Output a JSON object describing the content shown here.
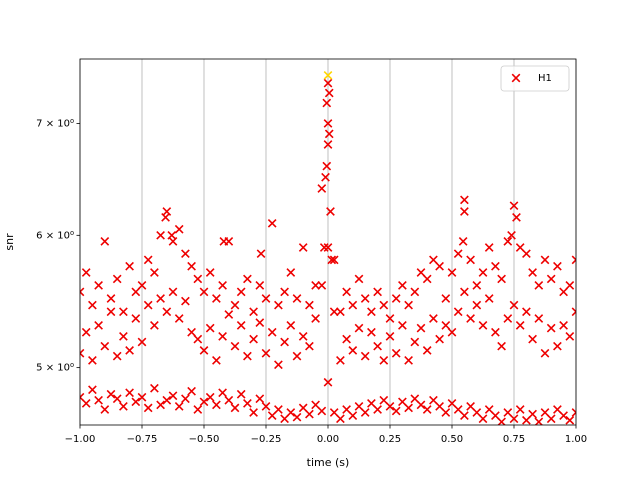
{
  "chart_data": {
    "type": "scatter",
    "xlabel": "time (s)",
    "ylabel": "snr",
    "xlim": [
      -1,
      1
    ],
    "xticks": [
      {
        "value": -1,
        "label": "−1.00"
      },
      {
        "value": -0.75,
        "label": "−0.75"
      },
      {
        "value": -0.5,
        "label": "−0.50"
      },
      {
        "value": -0.25,
        "label": "−0.25"
      },
      {
        "value": 0,
        "label": "0.00"
      },
      {
        "value": 0.25,
        "label": "0.25"
      },
      {
        "value": 0.5,
        "label": "0.50"
      },
      {
        "value": 0.75,
        "label": "0.75"
      },
      {
        "value": 1,
        "label": "1.00"
      }
    ],
    "ylim": [
      4.62,
      7.65
    ],
    "ylog": true,
    "yticks": [
      {
        "value": 5,
        "label": "5 × 10⁰"
      },
      {
        "value": 6,
        "label": "6 × 10⁰"
      },
      {
        "value": 7,
        "label": "7 × 10⁰"
      }
    ],
    "grid": "x",
    "legend": "upper right",
    "series": [
      {
        "name": "H1",
        "color": "#ee0000",
        "marker": "x",
        "x": [
          -1,
          -0.975,
          -0.95,
          -0.925,
          -0.9,
          -0.875,
          -0.85,
          -0.825,
          -0.8,
          -0.775,
          -0.75,
          -0.725,
          -0.7,
          -0.675,
          -0.65,
          -0.625,
          -0.6,
          -0.575,
          -0.55,
          -0.525,
          -0.5,
          -0.475,
          -0.45,
          -0.425,
          -0.4,
          -0.375,
          -0.35,
          -0.325,
          -0.3,
          -0.275,
          -0.25,
          -0.225,
          -0.2,
          -0.175,
          -0.15,
          -0.125,
          -0.1,
          -0.075,
          -0.05,
          -0.025,
          0,
          0.025,
          0.05,
          0.075,
          0.1,
          0.125,
          0.15,
          0.175,
          0.2,
          0.225,
          0.25,
          0.275,
          0.3,
          0.325,
          0.35,
          0.375,
          0.4,
          0.425,
          0.45,
          0.475,
          0.5,
          0.525,
          0.55,
          0.575,
          0.6,
          0.625,
          0.65,
          0.675,
          0.7,
          0.725,
          0.75,
          0.775,
          0.8,
          0.825,
          0.85,
          0.875,
          0.9,
          0.925,
          0.95,
          0.975,
          1,
          -1,
          -0.975,
          -0.95,
          -0.925,
          -0.9,
          -0.875,
          -0.85,
          -0.825,
          -0.8,
          -0.775,
          -0.75,
          -0.725,
          -0.7,
          -0.675,
          -0.65,
          -0.625,
          -0.6,
          -0.575,
          -0.55,
          -0.525,
          -0.5,
          -0.475,
          -0.45,
          -0.425,
          -0.4,
          -0.375,
          -0.35,
          -0.325,
          -0.3,
          -0.275,
          -0.25,
          -0.225,
          -0.2,
          -0.175,
          -0.15,
          -0.125,
          -0.1,
          -0.075,
          -0.05,
          -0.025,
          0,
          0.025,
          0.05,
          0.075,
          0.1,
          0.125,
          0.15,
          0.175,
          0.2,
          0.225,
          0.25,
          0.275,
          0.3,
          0.325,
          0.35,
          0.375,
          0.4,
          0.425,
          0.45,
          0.475,
          0.5,
          0.525,
          0.55,
          0.575,
          0.6,
          0.625,
          0.65,
          0.675,
          0.7,
          0.725,
          0.75,
          0.775,
          0.8,
          0.825,
          0.85,
          0.875,
          0.9,
          0.925,
          0.95,
          0.975,
          1,
          -1,
          -0.975,
          -0.95,
          -0.925,
          -0.9,
          -0.875,
          -0.85,
          -0.825,
          -0.8,
          -0.775,
          -0.75,
          -0.725,
          -0.7,
          -0.675,
          -0.65,
          -0.625,
          -0.6,
          -0.575,
          -0.55,
          -0.525,
          -0.5,
          -0.475,
          -0.45,
          -0.425,
          -0.4,
          -0.375,
          -0.35,
          -0.325,
          -0.3,
          -0.275,
          -0.25,
          -0.225,
          -0.2,
          -0.175,
          -0.15,
          -0.125,
          -0.1,
          -0.075,
          -0.05,
          -0.025,
          0,
          0.025,
          0.05,
          0.075,
          0.1,
          0.125,
          0.15,
          0.175,
          0.2,
          0.225,
          0.25,
          0.275,
          0.3,
          0.325,
          0.35,
          0.375,
          0.4,
          0.425,
          0.45,
          0.475,
          0.5,
          0.525,
          0.55,
          0.575,
          0.6,
          0.625,
          0.65,
          0.675,
          0.7,
          0.725,
          0.75,
          0.775,
          0.8,
          0.825,
          0.85,
          0.875,
          0.9,
          0.925,
          0.95,
          0.975,
          1,
          -0.01,
          -0.005,
          0,
          0.005,
          0.01,
          -0.015,
          0.015,
          0,
          -0.005,
          0.005,
          -0.655,
          -0.63,
          0.55,
          0.545,
          0.76,
          0.74,
          -0.42,
          -0.27
        ],
        "y": [
          4.8,
          4.76,
          4.85,
          4.78,
          4.72,
          4.82,
          4.79,
          4.74,
          4.83,
          4.77,
          4.8,
          4.73,
          4.86,
          4.75,
          4.78,
          4.81,
          4.74,
          4.79,
          4.84,
          4.72,
          4.77,
          4.8,
          4.75,
          4.83,
          4.78,
          4.73,
          4.82,
          4.76,
          4.7,
          4.79,
          4.74,
          4.68,
          4.72,
          4.66,
          4.7,
          4.67,
          4.73,
          4.69,
          4.75,
          4.71,
          4.9,
          4.7,
          4.66,
          4.72,
          4.68,
          4.74,
          4.7,
          4.76,
          4.72,
          4.78,
          4.74,
          4.71,
          4.77,
          4.73,
          4.79,
          4.75,
          4.72,
          4.78,
          4.74,
          4.7,
          4.76,
          4.72,
          4.68,
          4.74,
          4.7,
          4.66,
          4.72,
          4.68,
          4.64,
          4.7,
          4.66,
          4.72,
          4.65,
          4.69,
          4.64,
          4.7,
          4.66,
          4.72,
          4.68,
          4.65,
          4.7,
          5.1,
          5.25,
          5.05,
          5.3,
          5.15,
          5.4,
          5.08,
          5.22,
          5.12,
          5.35,
          5.18,
          5.45,
          5.3,
          5.5,
          5.4,
          5.55,
          5.35,
          5.48,
          5.25,
          5.2,
          5.12,
          5.28,
          5.05,
          5.22,
          5.38,
          5.15,
          5.3,
          5.08,
          5.2,
          5.32,
          5.1,
          5.25,
          5.02,
          5.18,
          5.3,
          5.08,
          5.22,
          5.15,
          5.35,
          5.6,
          5.9,
          5.4,
          5.05,
          5.2,
          5.12,
          5.28,
          5.08,
          5.25,
          5.15,
          5.05,
          5.22,
          5.1,
          5.3,
          5.05,
          5.18,
          5.28,
          5.12,
          5.35,
          5.2,
          5.3,
          5.25,
          5.4,
          5.55,
          5.35,
          5.45,
          5.3,
          5.5,
          5.25,
          5.15,
          5.35,
          5.45,
          5.3,
          5.4,
          5.2,
          5.35,
          5.1,
          5.28,
          5.15,
          5.3,
          5.22,
          5.4,
          5.55,
          5.7,
          5.45,
          5.6,
          5.95,
          5.5,
          5.65,
          5.4,
          5.75,
          5.55,
          5.6,
          5.8,
          5.7,
          6.0,
          6.2,
          5.95,
          6.05,
          5.85,
          5.75,
          5.65,
          5.55,
          5.7,
          5.5,
          5.6,
          5.95,
          5.45,
          5.55,
          5.65,
          5.4,
          5.6,
          5.5,
          6.1,
          5.45,
          5.55,
          5.7,
          5.5,
          5.9,
          5.45,
          5.6,
          6.4,
          7.0,
          5.8,
          5.4,
          5.55,
          5.45,
          5.65,
          5.5,
          5.4,
          5.55,
          5.45,
          5.35,
          5.5,
          5.6,
          5.45,
          5.55,
          5.7,
          5.65,
          5.8,
          5.75,
          5.5,
          5.7,
          5.85,
          6.3,
          5.8,
          5.6,
          5.7,
          5.9,
          5.75,
          5.65,
          5.95,
          6.25,
          5.9,
          5.85,
          5.7,
          5.6,
          5.8,
          5.65,
          5.75,
          5.55,
          5.6,
          5.8,
          6.5,
          7.2,
          7.4,
          7.3,
          6.2,
          5.9,
          5.8,
          6.8,
          6.6,
          6.9,
          6.15,
          6.0,
          6.2,
          5.95,
          6.15,
          6.0,
          5.95,
          5.85
        ]
      },
      {
        "color": "#ffd700",
        "marker": "x",
        "x": [
          0
        ],
        "y": [
          7.48
        ]
      }
    ]
  }
}
